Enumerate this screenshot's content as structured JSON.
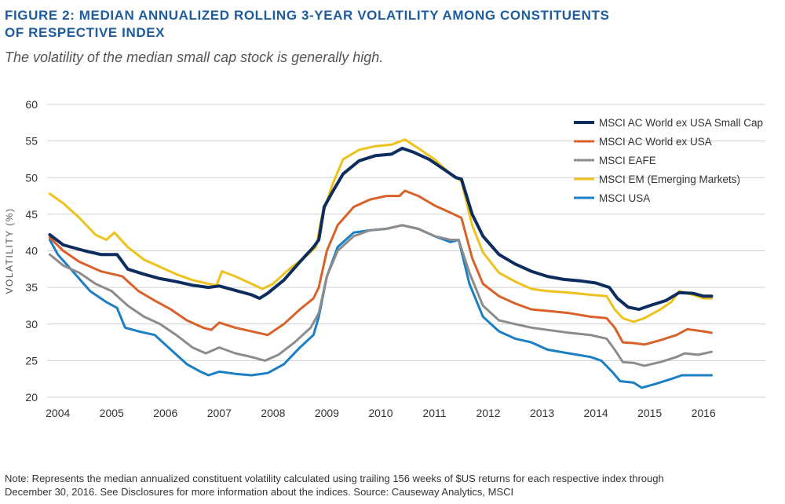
{
  "header": {
    "title_line1": "FIGURE 2: MEDIAN ANNUALIZED ROLLING 3-YEAR VOLATILITY AMONG CONSTITUENTS",
    "title_line2": "OF RESPECTIVE INDEX",
    "subtitle": "The volatility of the median small cap stock is generally high."
  },
  "footer": {
    "note_line1": "Note: Represents the median annualized constituent volatility calculated using trailing 156 weeks of $US returns for each respective index through",
    "note_line2": "December 30, 2016. See Disclosures for more information about the indices.  Source: Causeway Analytics, MSCI"
  },
  "chart_data": {
    "type": "line",
    "ylabel": "VOLATILITY (%)",
    "xlabel": "",
    "ylim": [
      20,
      60
    ],
    "yticks": [
      20,
      25,
      30,
      35,
      40,
      45,
      50,
      55,
      60
    ],
    "xlim": [
      2003.8,
      2017.15
    ],
    "xticks": [
      2004,
      2005,
      2006,
      2007,
      2008,
      2009,
      2010,
      2011,
      2012,
      2013,
      2014,
      2015,
      2016
    ],
    "grid": "horizontal",
    "legend_position": "top-right",
    "series": [
      {
        "name": "MSCI AC World ex USA Small Cap",
        "color": "#0d2d5e",
        "points": [
          [
            2003.85,
            42.2
          ],
          [
            2004.1,
            40.8
          ],
          [
            2004.5,
            40.0
          ],
          [
            2004.8,
            39.5
          ],
          [
            2005.1,
            39.5
          ],
          [
            2005.3,
            37.5
          ],
          [
            2005.6,
            36.8
          ],
          [
            2005.9,
            36.2
          ],
          [
            2006.2,
            35.8
          ],
          [
            2006.5,
            35.3
          ],
          [
            2006.8,
            35.0
          ],
          [
            2007.0,
            35.2
          ],
          [
            2007.3,
            34.6
          ],
          [
            2007.6,
            34.0
          ],
          [
            2007.75,
            33.5
          ],
          [
            2007.9,
            34.2
          ],
          [
            2008.2,
            36.0
          ],
          [
            2008.5,
            38.5
          ],
          [
            2008.75,
            40.5
          ],
          [
            2008.85,
            41.5
          ],
          [
            2008.95,
            46.0
          ],
          [
            2009.1,
            48.0
          ],
          [
            2009.3,
            50.5
          ],
          [
            2009.6,
            52.3
          ],
          [
            2009.9,
            53.0
          ],
          [
            2010.2,
            53.2
          ],
          [
            2010.4,
            54.0
          ],
          [
            2010.6,
            53.5
          ],
          [
            2010.9,
            52.5
          ],
          [
            2011.2,
            51.0
          ],
          [
            2011.4,
            50.0
          ],
          [
            2011.5,
            49.8
          ],
          [
            2011.7,
            45.0
          ],
          [
            2011.9,
            42.0
          ],
          [
            2012.2,
            39.5
          ],
          [
            2012.5,
            38.2
          ],
          [
            2012.8,
            37.2
          ],
          [
            2013.1,
            36.5
          ],
          [
            2013.4,
            36.1
          ],
          [
            2013.7,
            35.9
          ],
          [
            2014.0,
            35.6
          ],
          [
            2014.25,
            35.0
          ],
          [
            2014.4,
            33.5
          ],
          [
            2014.6,
            32.3
          ],
          [
            2014.8,
            32.0
          ],
          [
            2015.0,
            32.5
          ],
          [
            2015.3,
            33.2
          ],
          [
            2015.55,
            34.3
          ],
          [
            2015.8,
            34.2
          ],
          [
            2016.0,
            33.8
          ],
          [
            2016.15,
            33.8
          ]
        ]
      },
      {
        "name": "MSCI AC World ex USA",
        "color": "#d9622b",
        "points": [
          [
            2003.85,
            41.8
          ],
          [
            2004.1,
            40.0
          ],
          [
            2004.4,
            38.5
          ],
          [
            2004.8,
            37.2
          ],
          [
            2005.2,
            36.5
          ],
          [
            2005.5,
            34.5
          ],
          [
            2005.8,
            33.2
          ],
          [
            2006.1,
            32.0
          ],
          [
            2006.4,
            30.5
          ],
          [
            2006.7,
            29.5
          ],
          [
            2006.85,
            29.2
          ],
          [
            2007.0,
            30.2
          ],
          [
            2007.3,
            29.5
          ],
          [
            2007.6,
            29.0
          ],
          [
            2007.9,
            28.5
          ],
          [
            2008.2,
            30.0
          ],
          [
            2008.5,
            32.0
          ],
          [
            2008.75,
            33.5
          ],
          [
            2008.85,
            35.0
          ],
          [
            2009.0,
            40.0
          ],
          [
            2009.2,
            43.5
          ],
          [
            2009.5,
            46.0
          ],
          [
            2009.8,
            47.0
          ],
          [
            2010.1,
            47.5
          ],
          [
            2010.35,
            47.5
          ],
          [
            2010.45,
            48.2
          ],
          [
            2010.7,
            47.5
          ],
          [
            2011.0,
            46.2
          ],
          [
            2011.3,
            45.2
          ],
          [
            2011.5,
            44.5
          ],
          [
            2011.7,
            39.0
          ],
          [
            2011.9,
            35.5
          ],
          [
            2012.2,
            33.8
          ],
          [
            2012.5,
            32.8
          ],
          [
            2012.8,
            32.0
          ],
          [
            2013.1,
            31.8
          ],
          [
            2013.5,
            31.5
          ],
          [
            2013.9,
            31.0
          ],
          [
            2014.2,
            30.8
          ],
          [
            2014.35,
            29.5
          ],
          [
            2014.5,
            27.5
          ],
          [
            2014.7,
            27.4
          ],
          [
            2014.9,
            27.2
          ],
          [
            2015.2,
            27.8
          ],
          [
            2015.5,
            28.5
          ],
          [
            2015.7,
            29.3
          ],
          [
            2016.0,
            29.0
          ],
          [
            2016.15,
            28.8
          ]
        ]
      },
      {
        "name": "MSCI EAFE",
        "color": "#8c8c8c",
        "points": [
          [
            2003.85,
            39.5
          ],
          [
            2004.1,
            38.0
          ],
          [
            2004.4,
            37.0
          ],
          [
            2004.7,
            35.5
          ],
          [
            2005.0,
            34.5
          ],
          [
            2005.3,
            32.5
          ],
          [
            2005.6,
            31.0
          ],
          [
            2005.9,
            30.0
          ],
          [
            2006.2,
            28.5
          ],
          [
            2006.5,
            26.8
          ],
          [
            2006.75,
            26.0
          ],
          [
            2007.0,
            26.8
          ],
          [
            2007.3,
            26.0
          ],
          [
            2007.6,
            25.5
          ],
          [
            2007.85,
            25.0
          ],
          [
            2008.1,
            25.8
          ],
          [
            2008.4,
            27.5
          ],
          [
            2008.7,
            29.5
          ],
          [
            2008.85,
            31.5
          ],
          [
            2009.0,
            36.5
          ],
          [
            2009.2,
            40.0
          ],
          [
            2009.5,
            42.0
          ],
          [
            2009.8,
            42.8
          ],
          [
            2010.1,
            43.0
          ],
          [
            2010.4,
            43.5
          ],
          [
            2010.7,
            43.0
          ],
          [
            2011.0,
            42.0
          ],
          [
            2011.3,
            41.5
          ],
          [
            2011.45,
            41.5
          ],
          [
            2011.65,
            37.0
          ],
          [
            2011.9,
            32.5
          ],
          [
            2012.2,
            30.5
          ],
          [
            2012.5,
            30.0
          ],
          [
            2012.8,
            29.5
          ],
          [
            2013.1,
            29.2
          ],
          [
            2013.5,
            28.8
          ],
          [
            2013.9,
            28.5
          ],
          [
            2014.2,
            28.0
          ],
          [
            2014.35,
            26.5
          ],
          [
            2014.5,
            24.8
          ],
          [
            2014.7,
            24.7
          ],
          [
            2014.9,
            24.3
          ],
          [
            2015.2,
            24.8
          ],
          [
            2015.5,
            25.5
          ],
          [
            2015.65,
            26.0
          ],
          [
            2015.9,
            25.8
          ],
          [
            2016.15,
            26.2
          ]
        ]
      },
      {
        "name": "MSCI EM (Emerging Markets)",
        "color": "#eec21c",
        "points": [
          [
            2003.85,
            47.8
          ],
          [
            2004.1,
            46.5
          ],
          [
            2004.4,
            44.5
          ],
          [
            2004.7,
            42.2
          ],
          [
            2004.9,
            41.5
          ],
          [
            2005.05,
            42.5
          ],
          [
            2005.3,
            40.5
          ],
          [
            2005.6,
            38.8
          ],
          [
            2005.9,
            37.8
          ],
          [
            2006.2,
            36.8
          ],
          [
            2006.5,
            36.0
          ],
          [
            2006.8,
            35.5
          ],
          [
            2006.95,
            35.3
          ],
          [
            2007.05,
            37.2
          ],
          [
            2007.3,
            36.5
          ],
          [
            2007.6,
            35.5
          ],
          [
            2007.8,
            34.8
          ],
          [
            2008.0,
            35.5
          ],
          [
            2008.3,
            37.5
          ],
          [
            2008.6,
            39.2
          ],
          [
            2008.8,
            40.5
          ],
          [
            2008.9,
            44.5
          ],
          [
            2009.1,
            49.0
          ],
          [
            2009.3,
            52.5
          ],
          [
            2009.6,
            53.8
          ],
          [
            2009.9,
            54.3
          ],
          [
            2010.2,
            54.5
          ],
          [
            2010.45,
            55.2
          ],
          [
            2010.7,
            54.0
          ],
          [
            2011.0,
            52.5
          ],
          [
            2011.3,
            50.5
          ],
          [
            2011.5,
            49.5
          ],
          [
            2011.7,
            43.5
          ],
          [
            2011.9,
            39.8
          ],
          [
            2012.2,
            37.0
          ],
          [
            2012.5,
            35.8
          ],
          [
            2012.8,
            34.8
          ],
          [
            2013.1,
            34.5
          ],
          [
            2013.5,
            34.3
          ],
          [
            2013.9,
            34.0
          ],
          [
            2014.2,
            33.8
          ],
          [
            2014.35,
            32.0
          ],
          [
            2014.5,
            30.8
          ],
          [
            2014.7,
            30.3
          ],
          [
            2014.9,
            30.8
          ],
          [
            2015.2,
            32.0
          ],
          [
            2015.4,
            33.0
          ],
          [
            2015.55,
            34.5
          ],
          [
            2015.8,
            34.0
          ],
          [
            2016.0,
            33.5
          ],
          [
            2016.15,
            33.5
          ]
        ]
      },
      {
        "name": "MSCI USA",
        "color": "#1c7fc4",
        "points": [
          [
            2003.85,
            41.5
          ],
          [
            2004.0,
            39.5
          ],
          [
            2004.3,
            37.0
          ],
          [
            2004.6,
            34.5
          ],
          [
            2004.9,
            33.0
          ],
          [
            2005.1,
            32.2
          ],
          [
            2005.25,
            29.5
          ],
          [
            2005.5,
            29.0
          ],
          [
            2005.8,
            28.5
          ],
          [
            2006.1,
            26.5
          ],
          [
            2006.4,
            24.5
          ],
          [
            2006.65,
            23.5
          ],
          [
            2006.8,
            23.0
          ],
          [
            2007.0,
            23.5
          ],
          [
            2007.3,
            23.2
          ],
          [
            2007.6,
            23.0
          ],
          [
            2007.9,
            23.3
          ],
          [
            2008.2,
            24.5
          ],
          [
            2008.5,
            26.8
          ],
          [
            2008.75,
            28.5
          ],
          [
            2008.85,
            31.0
          ],
          [
            2009.0,
            36.5
          ],
          [
            2009.2,
            40.5
          ],
          [
            2009.5,
            42.5
          ],
          [
            2009.8,
            42.8
          ],
          [
            2010.1,
            43.0
          ],
          [
            2010.4,
            43.5
          ],
          [
            2010.7,
            43.0
          ],
          [
            2011.0,
            42.0
          ],
          [
            2011.3,
            41.2
          ],
          [
            2011.45,
            41.5
          ],
          [
            2011.65,
            35.5
          ],
          [
            2011.9,
            31.0
          ],
          [
            2012.2,
            29.0
          ],
          [
            2012.5,
            28.0
          ],
          [
            2012.8,
            27.5
          ],
          [
            2013.1,
            26.5
          ],
          [
            2013.5,
            26.0
          ],
          [
            2013.9,
            25.5
          ],
          [
            2014.1,
            25.0
          ],
          [
            2014.3,
            23.5
          ],
          [
            2014.45,
            22.2
          ],
          [
            2014.7,
            22.0
          ],
          [
            2014.85,
            21.3
          ],
          [
            2015.1,
            21.8
          ],
          [
            2015.4,
            22.5
          ],
          [
            2015.6,
            23.0
          ],
          [
            2015.9,
            23.0
          ],
          [
            2016.15,
            23.0
          ]
        ]
      }
    ]
  }
}
